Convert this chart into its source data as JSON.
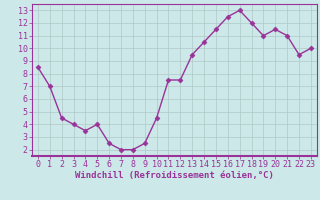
{
  "x": [
    0,
    1,
    2,
    3,
    4,
    5,
    6,
    7,
    8,
    9,
    10,
    11,
    12,
    13,
    14,
    15,
    16,
    17,
    18,
    19,
    20,
    21,
    22,
    23
  ],
  "y": [
    8.5,
    7.0,
    4.5,
    4.0,
    3.5,
    4.0,
    2.5,
    2.0,
    2.0,
    2.5,
    4.5,
    7.5,
    7.5,
    9.5,
    10.5,
    11.5,
    12.5,
    13.0,
    12.0,
    11.0,
    11.5,
    11.0,
    9.5,
    10.0
  ],
  "line_color": "#993399",
  "marker": "D",
  "marker_size": 2.5,
  "linewidth": 1.0,
  "xlabel": "Windchill (Refroidissement éolien,°C)",
  "xlim": [
    -0.5,
    23.5
  ],
  "ylim": [
    1.5,
    13.5
  ],
  "yticks": [
    2,
    3,
    4,
    5,
    6,
    7,
    8,
    9,
    10,
    11,
    12,
    13
  ],
  "xticks": [
    0,
    1,
    2,
    3,
    4,
    5,
    6,
    7,
    8,
    9,
    10,
    11,
    12,
    13,
    14,
    15,
    16,
    17,
    18,
    19,
    20,
    21,
    22,
    23
  ],
  "bg_color": "#cce8e8",
  "grid_color": "#b0c8c8",
  "axis_label_fontsize": 6.5,
  "tick_fontsize": 6.0,
  "xlabel_color": "#993399",
  "tick_color": "#993399",
  "spine_color": "#993399",
  "bottom_spine_color": "#993399"
}
